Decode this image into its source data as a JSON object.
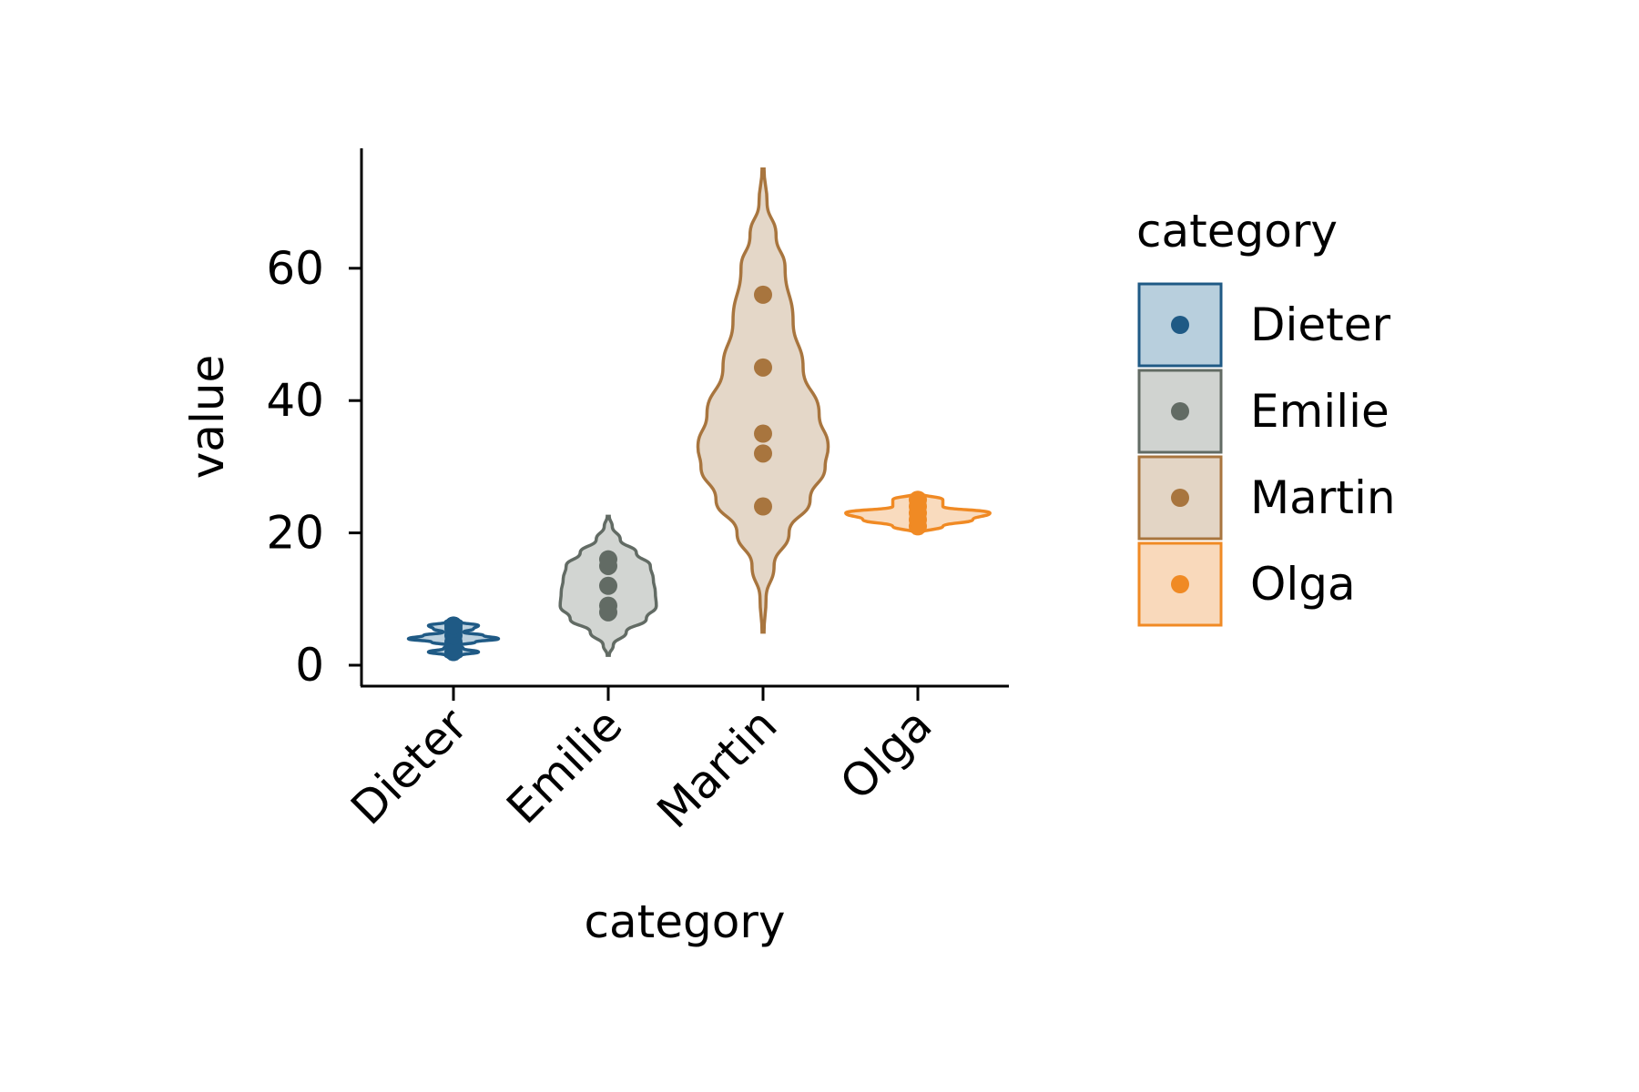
{
  "chart_data": {
    "type": "violin",
    "title": "",
    "xlabel": "category",
    "ylabel": "value",
    "categories": [
      "Dieter",
      "Emilie",
      "Martin",
      "Olga"
    ],
    "ylim": [
      -3,
      78
    ],
    "yticks": [
      0,
      20,
      40,
      60
    ],
    "ytick_labels": [
      "0",
      "20",
      "40",
      "60"
    ],
    "legend": {
      "title": "category",
      "placement": "right"
    },
    "grid": false,
    "series": [
      {
        "name": "Dieter",
        "color": "#1f5a85",
        "fill": "#b8cfdd",
        "points": [
          2,
          3.5,
          4.5,
          5.5,
          6
        ],
        "violin": [
          [
            1,
            0.03
          ],
          [
            1.5,
            0.08
          ],
          [
            2,
            0.25
          ],
          [
            2.5,
            0.1
          ],
          [
            3,
            0.06
          ],
          [
            3.5,
            0.22
          ],
          [
            4,
            0.45
          ],
          [
            4.5,
            0.3
          ],
          [
            5,
            0.1
          ],
          [
            5.5,
            0.2
          ],
          [
            6,
            0.25
          ],
          [
            6.5,
            0.08
          ],
          [
            7,
            0.02
          ]
        ]
      },
      {
        "name": "Emilie",
        "color": "#626b64",
        "fill": "#d0d3d0",
        "points": [
          8,
          9,
          12,
          15,
          16
        ],
        "violin": [
          [
            1.5,
            0.01
          ],
          [
            3,
            0.05
          ],
          [
            5,
            0.18
          ],
          [
            7,
            0.38
          ],
          [
            9,
            0.48
          ],
          [
            11,
            0.47
          ],
          [
            13,
            0.45
          ],
          [
            15,
            0.42
          ],
          [
            17,
            0.28
          ],
          [
            19,
            0.12
          ],
          [
            21,
            0.04
          ],
          [
            22.5,
            0.01
          ]
        ]
      },
      {
        "name": "Martin",
        "color": "#a8753e",
        "fill": "#e3d5c5",
        "points": [
          24,
          32,
          35,
          45,
          56
        ],
        "violin": [
          [
            5,
            0.01
          ],
          [
            10,
            0.03
          ],
          [
            15,
            0.11
          ],
          [
            20,
            0.26
          ],
          [
            25,
            0.47
          ],
          [
            30,
            0.62
          ],
          [
            33,
            0.65
          ],
          [
            38,
            0.56
          ],
          [
            45,
            0.4
          ],
          [
            52,
            0.3
          ],
          [
            60,
            0.22
          ],
          [
            65,
            0.13
          ],
          [
            70,
            0.04
          ],
          [
            75,
            0.01
          ]
        ]
      },
      {
        "name": "Olga",
        "color": "#f08a24",
        "fill": "#f9d9bb",
        "points": [
          21,
          22,
          23,
          24,
          25
        ],
        "violin": [
          [
            20,
            0.03
          ],
          [
            21,
            0.25
          ],
          [
            22,
            0.55
          ],
          [
            23,
            0.72
          ],
          [
            24,
            0.25
          ],
          [
            25,
            0.25
          ],
          [
            26,
            0.02
          ]
        ]
      }
    ]
  }
}
